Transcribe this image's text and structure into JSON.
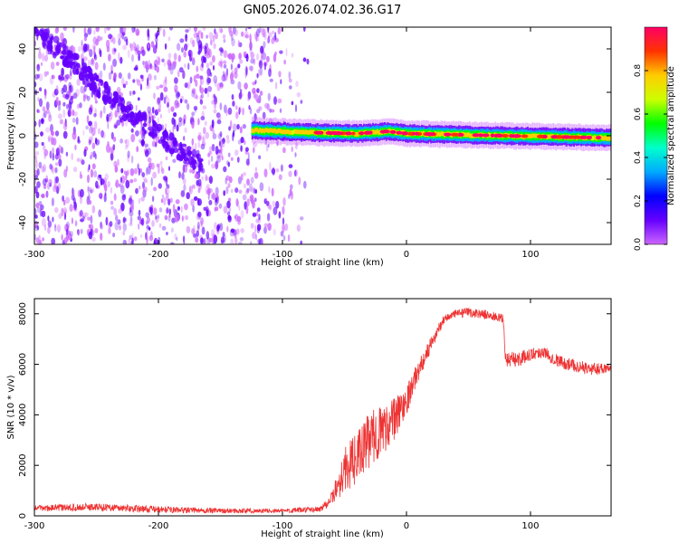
{
  "title": "GN05.2026.074.02.36.G17",
  "colors": {
    "snr_line": "#ee3333",
    "cmap": [
      "#cc66ff",
      "#6600ff",
      "#0000ff",
      "#00aaff",
      "#00ffcc",
      "#00ff00",
      "#ccff00",
      "#ffcc00",
      "#ff3300",
      "#ff0066"
    ]
  },
  "chart_data": [
    {
      "type": "heatmap",
      "xlabel": "Height of straight line (km)",
      "ylabel": "Frequency (Hz)",
      "xlim": [
        -300,
        165
      ],
      "ylim": [
        -50,
        50
      ],
      "xticks": [
        -300,
        -200,
        -100,
        0,
        100
      ],
      "yticks": [
        -40,
        -20,
        0,
        20,
        40
      ],
      "colorbar": {
        "label": "Normalized spectral amplitude",
        "range": [
          0,
          1
        ],
        "ticks": [
          "0.0",
          "0.2",
          "0.4",
          "0.6",
          "0.8"
        ]
      },
      "ridges": [
        {
          "name": "noise_diagonal",
          "points": [
            [
              -300,
              48
            ],
            [
              -270,
              35
            ],
            [
              -240,
              18
            ],
            [
              -210,
              5
            ],
            [
              -180,
              -8
            ],
            [
              -165,
              -12
            ]
          ],
          "amplitude": 0.15
        },
        {
          "name": "carrier",
          "points": [
            [
              -125,
              2.5
            ],
            [
              -80,
              1.5
            ],
            [
              -40,
              1
            ],
            [
              -15,
              2
            ],
            [
              0,
              1
            ],
            [
              40,
              0.5
            ],
            [
              80,
              0
            ],
            [
              120,
              -0.5
            ],
            [
              165,
              -1
            ]
          ],
          "amplitude": 0.9
        }
      ]
    },
    {
      "type": "line",
      "xlabel": "Height of straight line (km)",
      "ylabel": "SNR (10 * v/v)",
      "xlim": [
        -300,
        165
      ],
      "ylim": [
        0,
        8600
      ],
      "xticks": [
        -300,
        -200,
        -100,
        0,
        100
      ],
      "yticks": [
        0,
        2000,
        4000,
        6000,
        8000
      ],
      "x": [
        -300,
        -250,
        -200,
        -150,
        -100,
        -70,
        -60,
        -50,
        -40,
        -30,
        -20,
        -10,
        0,
        10,
        20,
        30,
        40,
        50,
        60,
        70,
        78,
        80,
        90,
        100,
        110,
        120,
        130,
        140,
        150,
        165
      ],
      "y": [
        300,
        350,
        250,
        200,
        200,
        250,
        700,
        1800,
        2300,
        3000,
        3400,
        3800,
        4600,
        5800,
        6800,
        7800,
        8000,
        8050,
        8000,
        7900,
        7800,
        6200,
        6200,
        6400,
        6500,
        6200,
        6000,
        5900,
        5800,
        5900
      ],
      "noise": [
        120,
        150,
        130,
        100,
        90,
        120,
        250,
        900,
        1000,
        1100,
        1000,
        900,
        600,
        400,
        300,
        180,
        180,
        180,
        180,
        180,
        180,
        300,
        300,
        250,
        250,
        250,
        250,
        250,
        250,
        250
      ]
    }
  ]
}
